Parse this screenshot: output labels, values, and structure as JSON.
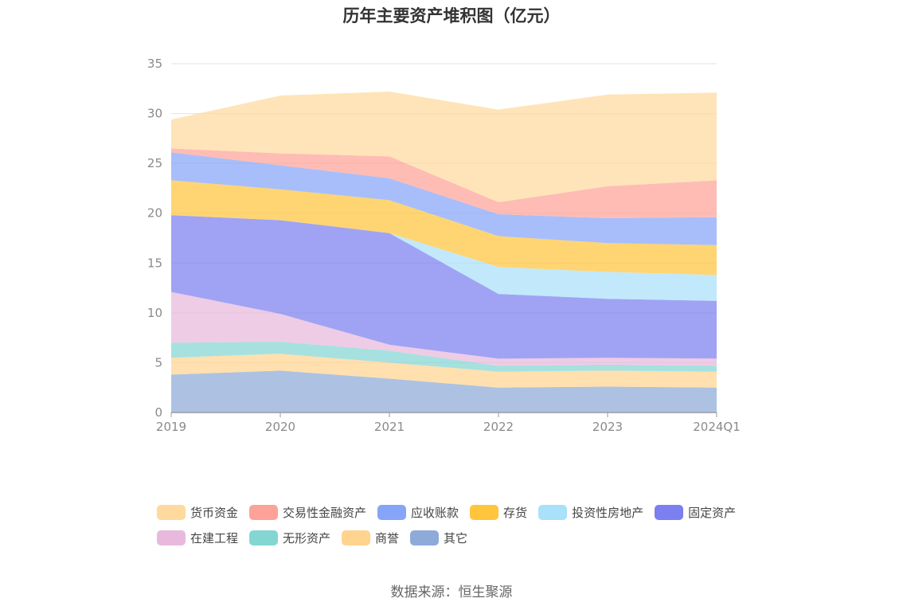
{
  "chart_data": {
    "type": "area",
    "stacked": true,
    "title": "历年主要资产堆积图（亿元）",
    "x": [
      "2019",
      "2020",
      "2021",
      "2022",
      "2023",
      "2024Q1"
    ],
    "ylim": [
      0,
      35
    ],
    "yticks": [
      0,
      5,
      10,
      15,
      20,
      25,
      30,
      35
    ],
    "grid": true,
    "legend_position": "bottom",
    "series": [
      {
        "name": "其它",
        "color": "#8eaad8",
        "values": [
          3.8,
          4.2,
          3.4,
          2.5,
          2.6,
          2.5
        ]
      },
      {
        "name": "商誉",
        "color": "#ffd48f",
        "values": [
          1.7,
          1.7,
          1.6,
          1.6,
          1.6,
          1.6
        ]
      },
      {
        "name": "无形资产",
        "color": "#84d6d2",
        "values": [
          1.5,
          1.2,
          1.2,
          0.6,
          0.6,
          0.6
        ]
      },
      {
        "name": "在建工程",
        "color": "#e8b9dc",
        "values": [
          5.1,
          2.8,
          0.6,
          0.7,
          0.7,
          0.7
        ]
      },
      {
        "name": "固定资产",
        "color": "#7b7ff0",
        "values": [
          7.7,
          9.4,
          11.2,
          6.5,
          5.9,
          5.8
        ]
      },
      {
        "name": "投资性房地产",
        "color": "#a9e0fa",
        "values": [
          0.0,
          0.0,
          0.0,
          2.7,
          2.7,
          2.6
        ]
      },
      {
        "name": "存货",
        "color": "#ffc53d",
        "values": [
          3.5,
          3.1,
          3.3,
          3.1,
          2.9,
          3.0
        ]
      },
      {
        "name": "应收账款",
        "color": "#86a5f8",
        "values": [
          2.8,
          2.4,
          2.2,
          2.2,
          2.5,
          2.8
        ]
      },
      {
        "name": "交易性金融资产",
        "color": "#fda299",
        "values": [
          0.4,
          1.2,
          2.2,
          1.2,
          3.2,
          3.7
        ]
      },
      {
        "name": "货币资金",
        "color": "#ffd99e",
        "values": [
          2.9,
          5.8,
          6.5,
          9.3,
          9.2,
          8.8
        ]
      }
    ]
  },
  "legend_items": [
    {
      "label": "货币资金",
      "color": "#ffd99e"
    },
    {
      "label": "交易性金融资产",
      "color": "#fda299"
    },
    {
      "label": "应收账款",
      "color": "#86a5f8"
    },
    {
      "label": "存货",
      "color": "#ffc53d"
    },
    {
      "label": "投资性房地产",
      "color": "#a9e0fa"
    },
    {
      "label": "固定资产",
      "color": "#7b7ff0"
    },
    {
      "label": "在建工程",
      "color": "#e8b9dc"
    },
    {
      "label": "无形资产",
      "color": "#84d6d2"
    },
    {
      "label": "商誉",
      "color": "#ffd48f"
    },
    {
      "label": "其它",
      "color": "#8eaad8"
    }
  ],
  "source": "数据来源：恒生聚源"
}
